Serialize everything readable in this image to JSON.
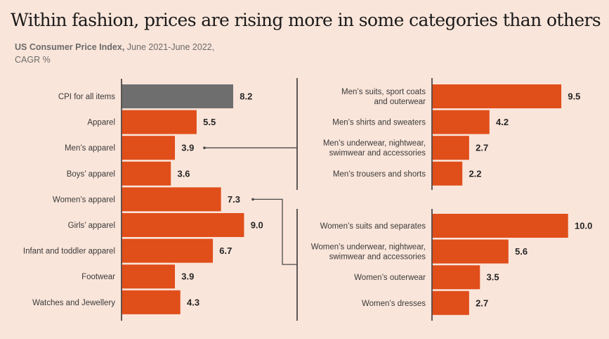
{
  "header": {
    "title": "Within fashion, prices are rising more in some categories than others",
    "subtitle_bold": "US Consumer Price Index,",
    "subtitle_rest": " June 2021-June 2022,",
    "subtitle_line2": "CAGR %"
  },
  "colors": {
    "background": "#FAE5DA",
    "bar": "#E04E1A",
    "highlight_bar": "#6E6E6E",
    "line": "#4a4a4a"
  },
  "chart_data": [
    {
      "type": "bar",
      "orientation": "horizontal",
      "panel": "overview",
      "title": "Within fashion, prices are rising more in some categories than others",
      "subtitle": "US Consumer Price Index, June 2021-June 2022, CAGR %",
      "xlabel": "",
      "ylabel": "",
      "xlim": [
        0,
        10
      ],
      "grid": false,
      "categories": [
        "CPI for all items",
        "Apparel",
        "Men’s apparel",
        "Boys’ apparel",
        "Women’s apparel",
        "Girls’ apparel",
        "Infant and toddler apparel",
        "Footwear",
        "Watches and Jewellery"
      ],
      "values": [
        8.2,
        5.5,
        3.9,
        3.6,
        7.3,
        9.0,
        6.7,
        3.9,
        4.3
      ],
      "labels": [
        "8.2",
        "5.5",
        "3.9",
        "3.6",
        "7.3",
        "9.0",
        "6.7",
        "3.9",
        "4.3"
      ],
      "highlight": [
        true,
        false,
        false,
        false,
        false,
        false,
        false,
        false,
        false
      ]
    },
    {
      "type": "bar",
      "orientation": "horizontal",
      "panel": "mens-breakdown",
      "linked_from": "Men’s apparel",
      "xlim": [
        0,
        10
      ],
      "categories": [
        "Men’s suits, sport coats and outerwear",
        "Men’s shirts and sweaters",
        "Men’s underwear, nightwear, swimwear and accessories",
        "Men’s trousers and shorts"
      ],
      "category_lines": [
        [
          "Men’s suits, sport coats",
          "and outerwear"
        ],
        [
          "Men’s shirts and sweaters"
        ],
        [
          "Men’s underwear, nightwear,",
          "swimwear and accessories"
        ],
        [
          "Men’s trousers and shorts"
        ]
      ],
      "values": [
        9.5,
        4.2,
        2.7,
        2.2
      ],
      "labels": [
        "9.5",
        "4.2",
        "2.7",
        "2.2"
      ]
    },
    {
      "type": "bar",
      "orientation": "horizontal",
      "panel": "womens-breakdown",
      "linked_from": "Women’s apparel",
      "xlim": [
        0,
        10
      ],
      "categories": [
        "Women’s suits and separates",
        "Women’s underwear, nightwear, swimwear and accessories",
        "Women’s outerwear",
        "Women’s dresses"
      ],
      "category_lines": [
        [
          "Women’s suits and separates"
        ],
        [
          "Women’s underwear, nightwear,",
          "swimwear and accessories"
        ],
        [
          "Women’s outerwear"
        ],
        [
          "Women’s dresses"
        ]
      ],
      "values": [
        10.0,
        5.6,
        3.5,
        2.7
      ],
      "labels": [
        "10.0",
        "5.6",
        "3.5",
        "2.7"
      ]
    }
  ]
}
